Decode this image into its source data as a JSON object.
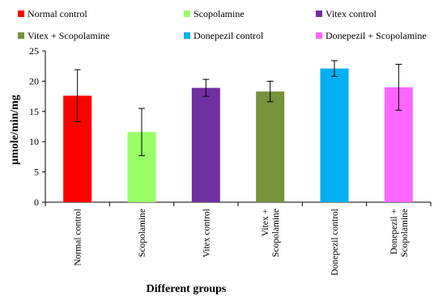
{
  "chart_data": {
    "type": "bar",
    "title": "",
    "xlabel": "Different groups",
    "ylabel": "µmole/min/mg",
    "ylim": [
      0,
      25
    ],
    "yticks": [
      "0",
      "5",
      "10",
      "15",
      "20",
      "25"
    ],
    "grid": false,
    "legend_position": "top",
    "categories": [
      [
        "Normal control"
      ],
      [
        "Scopolamine"
      ],
      [
        "Vitex control"
      ],
      [
        "Vitex +",
        "Scopolamine"
      ],
      [
        "Donepezil control"
      ],
      [
        "Donepezil +",
        "Scopolamine"
      ]
    ],
    "legend": [
      "Normal control",
      "Scopolamine",
      "Vitex control",
      "Vitex + Scopolamine",
      "Donepezil control",
      "Donepezil + Scopolamine"
    ],
    "values": [
      17.6,
      11.6,
      18.9,
      18.3,
      22.1,
      19.0
    ],
    "errors": [
      4.3,
      3.9,
      1.4,
      1.7,
      1.3,
      3.8
    ],
    "colors": [
      "#ff0000",
      "#99ff66",
      "#7030a0",
      "#77933c",
      "#00b0f0",
      "#ff66ff"
    ]
  }
}
